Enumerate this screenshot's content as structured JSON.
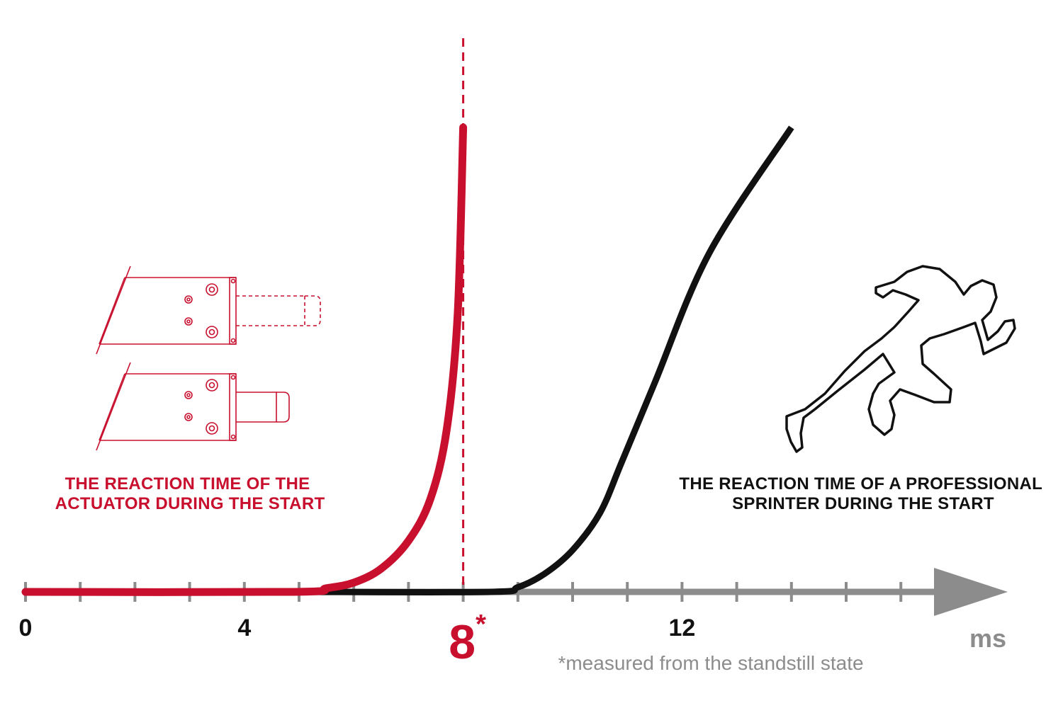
{
  "colors": {
    "actuator": "#c8102e",
    "sprinter": "#111111",
    "axis": "#8c8c8c"
  },
  "icons": {
    "actuator": "linear-actuator-icon",
    "sprinter": "running-sprinter-icon"
  },
  "chart_data": {
    "type": "line",
    "x_axis": {
      "min": 0,
      "max": 18,
      "minor_tick_step": 1,
      "tick_labels": [
        {
          "x": 0,
          "label": "0"
        },
        {
          "x": 4,
          "label": "4"
        },
        {
          "x": 12,
          "label": "12"
        }
      ],
      "unit": "ms"
    },
    "y_axis": {
      "min": 0,
      "max": 1,
      "shown": false
    },
    "marker": {
      "x": 8,
      "label": "8",
      "suffix": "*",
      "style": "dashed-vertical-line",
      "footnote": "*measured from the standstill state"
    },
    "series": [
      {
        "key": "actuator",
        "label_lines": [
          "THE REACTION TIME OF THE",
          "ACTUATOR DURING THE START"
        ],
        "points": [
          [
            0,
            0
          ],
          [
            4.9,
            0
          ],
          [
            5.5,
            0.008
          ],
          [
            6,
            0.02
          ],
          [
            6.5,
            0.05
          ],
          [
            7,
            0.11
          ],
          [
            7.4,
            0.2
          ],
          [
            7.7,
            0.35
          ],
          [
            7.9,
            0.6
          ],
          [
            8,
            1
          ]
        ]
      },
      {
        "key": "sprinter",
        "label_lines": [
          "THE REACTION TIME OF A PROFESSIONAL",
          "SPRINTER DURING THE START"
        ],
        "points": [
          [
            5,
            0
          ],
          [
            8.5,
            0
          ],
          [
            9,
            0.01
          ],
          [
            9.5,
            0.04
          ],
          [
            10,
            0.09
          ],
          [
            10.5,
            0.17
          ],
          [
            10.9,
            0.28
          ],
          [
            11.5,
            0.45
          ],
          [
            12.5,
            0.73
          ],
          [
            14,
            1
          ]
        ]
      }
    ]
  }
}
